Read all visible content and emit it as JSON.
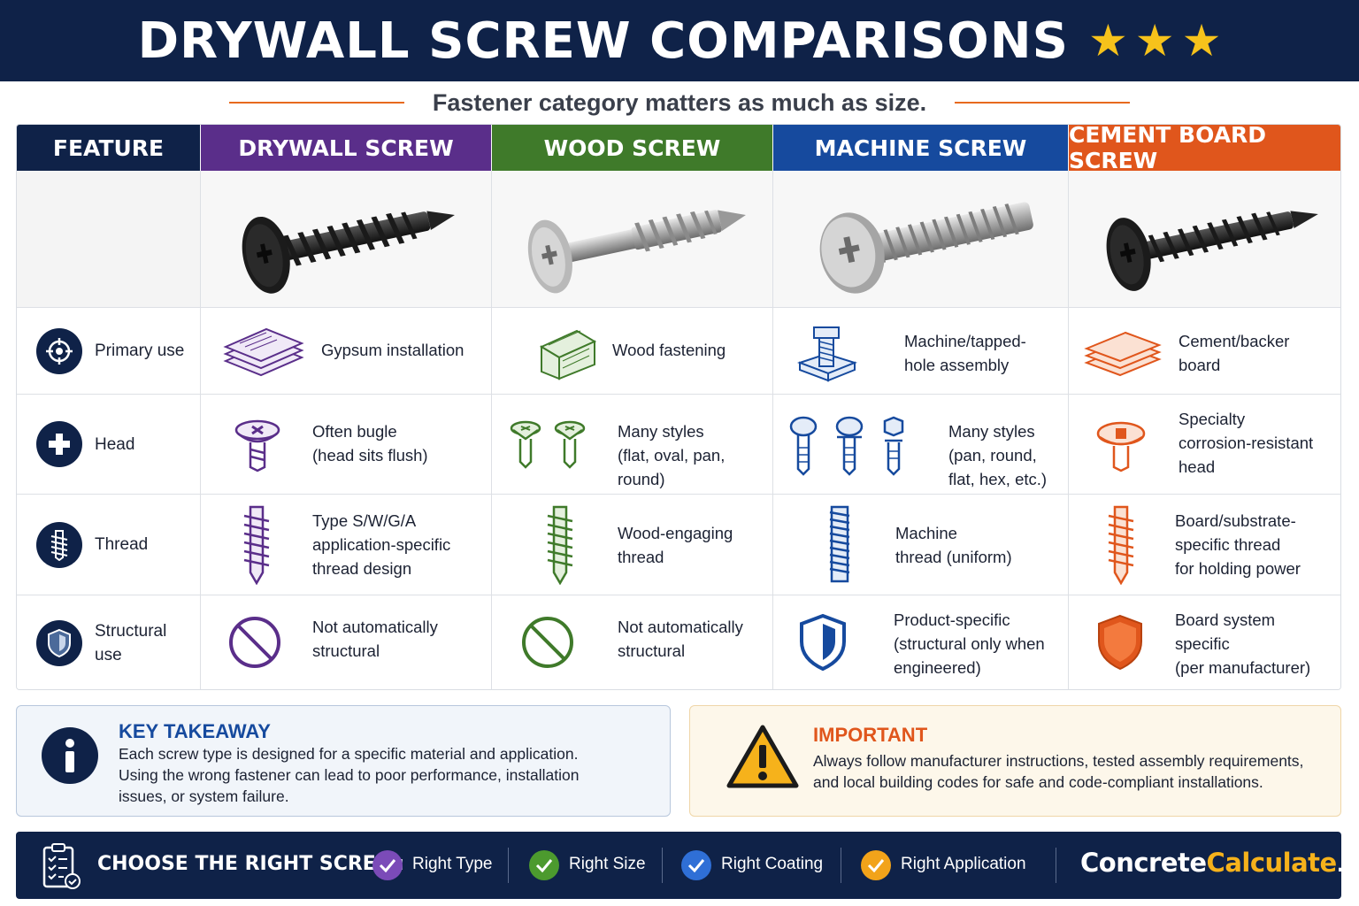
{
  "header": {
    "title": "DRYWALL SCREW COMPARISONS",
    "subtitle": "Fastener category matters as much as size."
  },
  "columns": [
    {
      "label": "FEATURE",
      "color": "#0f2248"
    },
    {
      "label": "DRYWALL SCREW",
      "color": "#5a2e8a"
    },
    {
      "label": "WOOD SCREW",
      "color": "#3f7a2a"
    },
    {
      "label": "MACHINE SCREW",
      "color": "#164a9e"
    },
    {
      "label": "CEMENT BOARD SCREW",
      "color": "#e0561c"
    }
  ],
  "rows": [
    {
      "feature": "Primary use",
      "icon": "target-icon",
      "cells": [
        "Gypsum installation",
        "Wood fastening",
        "Machine/tapped-\nhole assembly",
        "Cement/backer\nboard"
      ]
    },
    {
      "feature": "Head",
      "icon": "plus-icon",
      "cells": [
        "Often bugle\n(head sits flush)",
        "Many styles\n(flat, oval, pan, round)",
        "Many styles\n(pan, round,\n flat, hex, etc.)",
        "Specialty\ncorrosion-resistant\nhead"
      ]
    },
    {
      "feature": "Thread",
      "icon": "thread-icon",
      "cells": [
        "Type S/W/G/A\napplication-specific\nthread design",
        "Wood-engaging\nthread",
        "Machine\nthread (uniform)",
        "Board/substrate-\nspecific thread\nfor holding power"
      ]
    },
    {
      "feature": "Structural\nuse",
      "icon": "shield-icon",
      "cells": [
        "Not automatically\nstructural",
        "Not automatically\nstructural",
        "Product-specific\n(structural only when\nengineered)",
        "Board system\nspecific\n(per manufacturer)"
      ]
    }
  ],
  "key": {
    "title": "KEY TAKEAWAY",
    "text": "Each screw type is designed for a specific material and application.\nUsing the wrong fastener can lead to poor performance, installation\nissues, or system failure."
  },
  "important": {
    "title": "IMPORTANT",
    "text": "Always follow manufacturer instructions, tested assembly requirements,\nand local building codes for safe and code-compliant installations."
  },
  "footer": {
    "label": "CHOOSE THE RIGHT SCREW:",
    "items": [
      {
        "label": "Right Type",
        "color": "#7b4bb8"
      },
      {
        "label": "Right Size",
        "color": "#4c9a2e"
      },
      {
        "label": "Right Coating",
        "color": "#2f6fd6"
      },
      {
        "label": "Right Application",
        "color": "#f2a31a"
      }
    ],
    "brand_a": "Concrete",
    "brand_b": "Calculate",
    "brand_c": ".com"
  }
}
